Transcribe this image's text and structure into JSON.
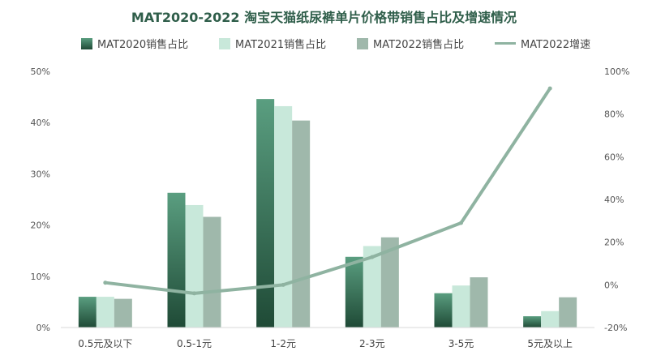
{
  "chart_data": {
    "type": "bar",
    "title": "MAT2020-2022 淘宝天猫纸尿裤单片价格带销售占比及增速情况",
    "categories": [
      "0.5元及以下",
      "0.5-1元",
      "1-2元",
      "2-3元",
      "3-5元",
      "5元及以上"
    ],
    "series": [
      {
        "name": "MAT2020销售占比",
        "type": "bar",
        "axis": "left",
        "values": [
          6.0,
          26.3,
          44.6,
          13.8,
          6.7,
          2.2
        ]
      },
      {
        "name": "MAT2021销售占比",
        "type": "bar",
        "axis": "left",
        "values": [
          6.0,
          23.9,
          43.2,
          15.9,
          8.2,
          3.2
        ]
      },
      {
        "name": "MAT2022销售占比",
        "type": "bar",
        "axis": "left",
        "values": [
          5.6,
          21.6,
          40.4,
          17.6,
          9.8,
          5.9
        ]
      },
      {
        "name": "MAT2022增速",
        "type": "line",
        "axis": "right",
        "values": [
          1.0,
          -4.0,
          0.0,
          13.0,
          29.0,
          92.0
        ]
      }
    ],
    "y_left": {
      "ylim": [
        0,
        50
      ],
      "ticks": [
        "0%",
        "10%",
        "20%",
        "30%",
        "40%",
        "50%"
      ]
    },
    "y_right": {
      "ylim": [
        -20,
        100
      ],
      "ticks": [
        "-20%",
        "0%",
        "20%",
        "40%",
        "60%",
        "80%",
        "100%"
      ]
    },
    "legend_position": "top",
    "grid": false,
    "colors": {
      "bar2020_top": "#5a9e80",
      "bar2020_bottom": "#1f4a36",
      "bar2021": "#c8e8da",
      "bar2022": "#9fb8ab",
      "line2022": "#8fb3a1",
      "title": "#2f5e4a"
    }
  }
}
